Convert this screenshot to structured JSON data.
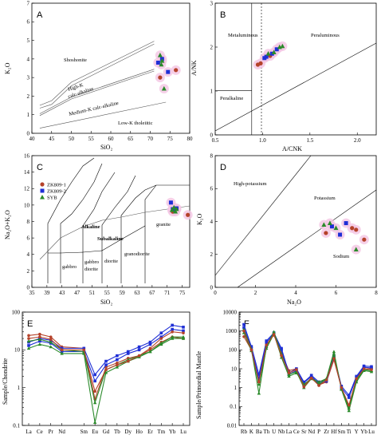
{
  "colors": {
    "zk1": "#b5422a",
    "zk2": "#1f2fd6",
    "syb": "#2a8a2a",
    "halo": "#f4c6e4"
  },
  "chart_data": [
    {
      "panel": "A",
      "type": "scatter",
      "xlabel": "SiO₂",
      "ylabel": "K₂O",
      "xlim": [
        40,
        80
      ],
      "ylim": [
        0,
        7
      ],
      "xticks": [
        40,
        45,
        50,
        55,
        60,
        65,
        70,
        75,
        80
      ],
      "yticks": [
        0,
        1,
        2,
        3,
        4,
        5,
        6,
        7
      ],
      "field_labels": [
        "Shoshonite",
        "High-K",
        "calc-alkaline",
        "Medium-K calc-alkaline",
        "Low-K tholeiitic"
      ],
      "series": [
        {
          "name": "ZK809-1",
          "points": [
            [
              72.5,
              3.0
            ],
            [
              76.5,
              3.4
            ]
          ]
        },
        {
          "name": "ZK809-2",
          "points": [
            [
              72.0,
              3.8
            ],
            [
              73.0,
              4.0
            ],
            [
              74.5,
              3.3
            ]
          ]
        },
        {
          "name": "SYB",
          "points": [
            [
              72.5,
              4.2
            ],
            [
              73.0,
              3.9
            ],
            [
              73.5,
              2.4
            ],
            [
              72.8,
              3.7
            ]
          ]
        }
      ]
    },
    {
      "panel": "B",
      "type": "scatter",
      "xlabel": "A/CNK",
      "ylabel": "A/NK",
      "xlim": [
        0.5,
        2.2
      ],
      "ylim": [
        0,
        3
      ],
      "xticks": [
        0.5,
        1.0,
        1.5,
        2.0
      ],
      "yticks": [
        0,
        1,
        2,
        3
      ],
      "field_labels": [
        "Metaluminous",
        "Peraluminous",
        "Peralkaline"
      ],
      "series": [
        {
          "name": "ZK809-1",
          "points": [
            [
              0.95,
              1.6
            ],
            [
              0.98,
              1.63
            ],
            [
              1.08,
              1.8
            ]
          ]
        },
        {
          "name": "ZK809-2",
          "points": [
            [
              1.02,
              1.75
            ],
            [
              1.04,
              1.78
            ],
            [
              1.1,
              1.85
            ],
            [
              1.15,
              1.95
            ]
          ]
        },
        {
          "name": "SYB",
          "points": [
            [
              1.12,
              1.88
            ],
            [
              1.18,
              2.0
            ],
            [
              1.21,
              2.02
            ],
            [
              1.06,
              1.85
            ]
          ]
        }
      ]
    },
    {
      "panel": "C",
      "type": "scatter",
      "xlabel": "SiO₂",
      "ylabel": "Na₂O+K₂O",
      "xlim": [
        35,
        77
      ],
      "ylim": [
        0,
        16
      ],
      "xticks": [
        35,
        39,
        43,
        47,
        51,
        55,
        59,
        63,
        67,
        71,
        75
      ],
      "yticks": [
        0,
        2,
        4,
        6,
        8,
        10,
        12,
        14,
        16
      ],
      "field_labels": [
        "Alkaline",
        "Subalkaline",
        "granite",
        "granodiorite",
        "diorite",
        "gabbro",
        "gabbro",
        "diorite",
        "Ir"
      ],
      "legend": [
        "ZK809-1",
        "ZK809-2",
        "SYB"
      ],
      "series": [
        {
          "name": "ZK809-1",
          "points": [
            [
              72.5,
              9.2
            ],
            [
              76.5,
              8.8
            ]
          ]
        },
        {
          "name": "ZK809-2",
          "points": [
            [
              72.0,
              10.3
            ],
            [
              72.5,
              9.5
            ],
            [
              73.5,
              9.6
            ]
          ]
        },
        {
          "name": "SYB",
          "points": [
            [
              72.3,
              9.4
            ],
            [
              72.8,
              9.7
            ],
            [
              73.2,
              9.2
            ],
            [
              73.5,
              9.5
            ]
          ]
        }
      ]
    },
    {
      "panel": "D",
      "type": "scatter",
      "xlabel": "Na₂O",
      "ylabel": "K₂O",
      "xlim": [
        0,
        8
      ],
      "ylim": [
        0,
        8
      ],
      "xticks": [
        0,
        2,
        4,
        6,
        8
      ],
      "yticks": [
        0,
        2,
        4,
        6,
        8
      ],
      "field_labels": [
        "High-potassium",
        "Potassium",
        "Sodium"
      ],
      "series": [
        {
          "name": "ZK809-1",
          "points": [
            [
              5.5,
              3.3
            ],
            [
              6.8,
              3.6
            ],
            [
              7.0,
              3.5
            ],
            [
              7.4,
              2.9
            ]
          ]
        },
        {
          "name": "ZK809-2",
          "points": [
            [
              5.8,
              3.7
            ],
            [
              6.2,
              3.2
            ],
            [
              6.5,
              3.9
            ]
          ]
        },
        {
          "name": "SYB",
          "points": [
            [
              5.4,
              3.8
            ],
            [
              5.7,
              3.9
            ],
            [
              6.0,
              3.6
            ],
            [
              7.0,
              2.3
            ]
          ]
        }
      ]
    },
    {
      "panel": "E",
      "type": "line",
      "ylabel": "Sample/Chondrite",
      "yscale": "log",
      "ylim": [
        0.1,
        100
      ],
      "ytick_labels": [
        "0.1",
        "1",
        "10",
        "100"
      ],
      "categories": [
        "La",
        "Ce",
        "Pr",
        "Nd",
        "Sm",
        "Eu",
        "Gd",
        "Tb",
        "Dy",
        "Ho",
        "Er",
        "Tm",
        "Yb",
        "Lu"
      ],
      "x_positions": [
        0,
        1,
        2,
        3,
        5,
        6,
        7,
        8,
        9,
        10,
        11,
        12,
        13,
        14
      ],
      "series": [
        {
          "name": "ZK809-1",
          "values": [
            24,
            26,
            22,
            12,
            11,
            0.5,
            3.5,
            4.5,
            6,
            7,
            10,
            16,
            22,
            20
          ]
        },
        {
          "name": "ZK809-2",
          "values": [
            16,
            20,
            18,
            11,
            11,
            2.2,
            5,
            7,
            9,
            12,
            16,
            28,
            45,
            40
          ]
        },
        {
          "name": "ZK809-2",
          "values": [
            13,
            17,
            15,
            9,
            9,
            1.5,
            4,
            5.5,
            8,
            10,
            14,
            22,
            35,
            32
          ]
        },
        {
          "name": "SYB",
          "values": [
            17,
            19,
            16,
            10,
            9,
            0.4,
            3,
            4,
            5.5,
            7,
            9,
            14,
            20,
            20
          ]
        },
        {
          "name": "SYB",
          "values": [
            11,
            14,
            12,
            8,
            8,
            0.12,
            2.5,
            3.5,
            5,
            6.5,
            9,
            15,
            22,
            22
          ]
        },
        {
          "name": "ZK809-1",
          "values": [
            20,
            22,
            19,
            10,
            10,
            0.8,
            3,
            4,
            5,
            7,
            11,
            20,
            30,
            28
          ]
        }
      ]
    },
    {
      "panel": "F",
      "type": "line",
      "ylabel": "Sample/Primordial Mantle",
      "yscale": "log",
      "ylim": [
        0.01,
        10000
      ],
      "ytick_labels": [
        "0.01",
        "0.1",
        "1",
        "10",
        "100",
        "1000",
        "10000"
      ],
      "categories": [
        "Rb",
        "K",
        "Ba",
        "Th",
        "U",
        "Nb",
        "La",
        "Ce",
        "Sr",
        "Nd",
        "P",
        "Zr",
        "Hf",
        "Sm",
        "Ti",
        "Y",
        "Yb",
        "Lu"
      ],
      "series": [
        {
          "name": "ZK809-1",
          "values": [
            500,
            100,
            2.5,
            200,
            600,
            70,
            8,
            10,
            1.2,
            3.5,
            1.4,
            2,
            30,
            1,
            0.1,
            3,
            12,
            10
          ]
        },
        {
          "name": "ZK809-2",
          "values": [
            2200,
            150,
            5,
            300,
            800,
            120,
            6,
            10,
            2,
            4.5,
            2,
            2.5,
            50,
            1.2,
            0.4,
            4,
            14,
            13
          ]
        },
        {
          "name": "ZK809-2",
          "values": [
            1500,
            120,
            3,
            250,
            700,
            100,
            5,
            8,
            1.8,
            4,
            1.6,
            2.2,
            40,
            1,
            0.3,
            3.5,
            12,
            11
          ]
        },
        {
          "name": "SYB",
          "values": [
            1200,
            110,
            0.5,
            150,
            900,
            60,
            5,
            7,
            1,
            3,
            1.5,
            3,
            80,
            0.8,
            0.06,
            2,
            8,
            7
          ]
        },
        {
          "name": "SYB",
          "values": [
            800,
            90,
            1.5,
            120,
            700,
            40,
            4,
            6,
            1.5,
            3,
            2,
            3,
            60,
            0.9,
            0.08,
            2.5,
            9,
            8
          ]
        },
        {
          "name": "ZK809-1",
          "values": [
            1000,
            100,
            2,
            180,
            650,
            50,
            6,
            9,
            1.1,
            3.2,
            1.3,
            2.5,
            35,
            1,
            0.12,
            3,
            10,
            9
          ]
        }
      ]
    }
  ]
}
